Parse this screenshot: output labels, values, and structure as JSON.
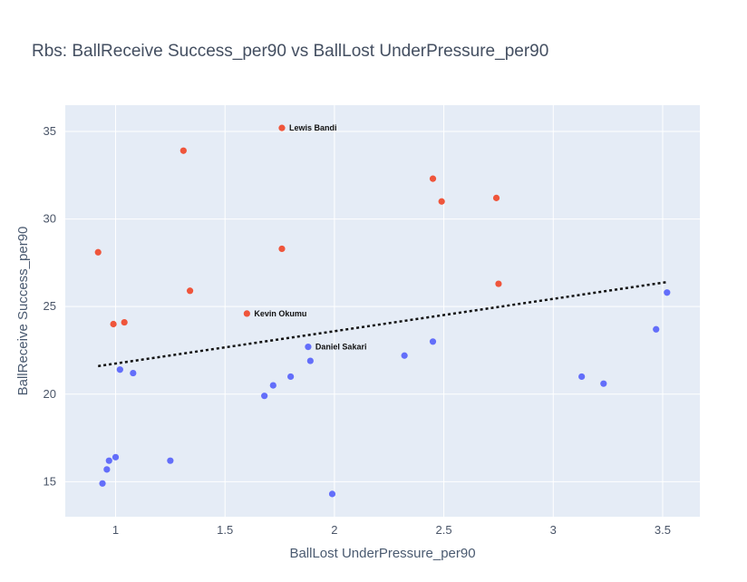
{
  "chart_data": {
    "type": "scatter",
    "title": "Rbs: BallReceive Success_per90 vs BallLost UnderPressure_per90",
    "xlabel": "BallLost UnderPressure_per90",
    "ylabel": "BallReceive Success_per90",
    "xlim": [
      0.77,
      3.67
    ],
    "ylim": [
      13.0,
      36.5
    ],
    "xticks": [
      1,
      1.5,
      2,
      2.5,
      3,
      3.5
    ],
    "xtick_labels": [
      "1",
      "1.5",
      "2",
      "2.5",
      "3",
      "3.5"
    ],
    "yticks": [
      15,
      20,
      25,
      30,
      35
    ],
    "ytick_labels": [
      "15",
      "20",
      "25",
      "30",
      "35"
    ],
    "grid": true,
    "background": "#e5ecf6",
    "series": [
      {
        "color": "#ef553b",
        "points": [
          {
            "x": 1.76,
            "y": 35.2,
            "label": "Lewis Bandi"
          },
          {
            "x": 1.31,
            "y": 33.9
          },
          {
            "x": 2.45,
            "y": 32.3
          },
          {
            "x": 2.49,
            "y": 31.0
          },
          {
            "x": 2.74,
            "y": 31.2
          },
          {
            "x": 0.92,
            "y": 28.1
          },
          {
            "x": 1.76,
            "y": 28.3
          },
          {
            "x": 1.34,
            "y": 25.9
          },
          {
            "x": 2.75,
            "y": 26.3
          },
          {
            "x": 1.6,
            "y": 24.6,
            "label": "Kevin Okumu"
          },
          {
            "x": 0.99,
            "y": 24.0
          },
          {
            "x": 1.04,
            "y": 24.1
          }
        ]
      },
      {
        "color": "#636efa",
        "points": [
          {
            "x": 1.88,
            "y": 22.7,
            "label": "Daniel Sakari"
          },
          {
            "x": 1.89,
            "y": 21.9
          },
          {
            "x": 2.32,
            "y": 22.2
          },
          {
            "x": 2.45,
            "y": 23.0
          },
          {
            "x": 3.47,
            "y": 23.7
          },
          {
            "x": 3.52,
            "y": 25.8
          },
          {
            "x": 1.02,
            "y": 21.4
          },
          {
            "x": 1.08,
            "y": 21.2
          },
          {
            "x": 1.8,
            "y": 21.0
          },
          {
            "x": 1.72,
            "y": 20.5
          },
          {
            "x": 1.68,
            "y": 19.9
          },
          {
            "x": 3.13,
            "y": 21.0
          },
          {
            "x": 3.23,
            "y": 20.6
          },
          {
            "x": 1.0,
            "y": 16.4
          },
          {
            "x": 0.97,
            "y": 16.2
          },
          {
            "x": 0.96,
            "y": 15.7
          },
          {
            "x": 0.94,
            "y": 14.9
          },
          {
            "x": 1.25,
            "y": 16.2
          },
          {
            "x": 1.99,
            "y": 14.3
          }
        ]
      }
    ],
    "trendline": {
      "style": "dotted",
      "color": "#111111",
      "x": [
        0.92,
        3.52
      ],
      "y": [
        21.6,
        26.4
      ]
    }
  }
}
